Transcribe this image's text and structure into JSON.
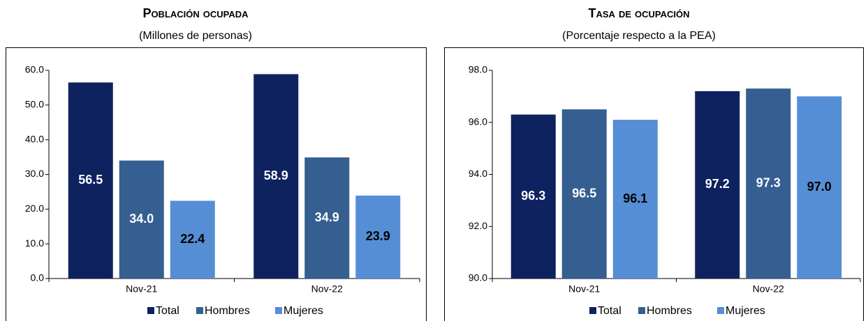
{
  "chart_data": [
    {
      "type": "bar",
      "title": "Población ocupada",
      "subtitle": "(Millones de personas)",
      "categories": [
        "Nov-21",
        "Nov-22"
      ],
      "series": [
        {
          "name": "Total",
          "color": "#0e2260",
          "values": [
            56.5,
            58.9
          ],
          "value_labels": [
            "56.5",
            "58.9"
          ],
          "label_color": "#ffffff"
        },
        {
          "name": "Hombres",
          "color": "#355f91",
          "values": [
            34.0,
            34.9
          ],
          "value_labels": [
            "34.0",
            "34.9"
          ],
          "label_color": "#ffffff"
        },
        {
          "name": "Mujeres",
          "color": "#558ed5",
          "values": [
            22.4,
            23.9
          ],
          "value_labels": [
            "22.4",
            "23.9"
          ],
          "label_color": "#000000"
        }
      ],
      "ylim": [
        0,
        60
      ],
      "yticks": [
        {
          "value": 0,
          "label": "0.0"
        },
        {
          "value": 10,
          "label": "10.0"
        },
        {
          "value": 20,
          "label": "20.0"
        },
        {
          "value": 30,
          "label": "30.0"
        },
        {
          "value": 40,
          "label": "40.0"
        },
        {
          "value": 50,
          "label": "50.0"
        },
        {
          "value": 60,
          "label": "60.0"
        }
      ],
      "grid": false,
      "legend": "bottom"
    },
    {
      "type": "bar",
      "title": "Tasa de ocupación",
      "subtitle": "(Porcentaje respecto a la PEA)",
      "categories": [
        "Nov-21",
        "Nov-22"
      ],
      "series": [
        {
          "name": "Total",
          "color": "#0e2260",
          "values": [
            96.3,
            97.2
          ],
          "value_labels": [
            "96.3",
            "97.2"
          ],
          "label_color": "#ffffff"
        },
        {
          "name": "Hombres",
          "color": "#355f91",
          "values": [
            96.5,
            97.3
          ],
          "value_labels": [
            "96.5",
            "97.3"
          ],
          "label_color": "#ffffff"
        },
        {
          "name": "Mujeres",
          "color": "#558ed5",
          "values": [
            96.1,
            97.0
          ],
          "value_labels": [
            "96.1",
            "97.0"
          ],
          "label_color": "#000000"
        }
      ],
      "ylim": [
        90,
        98
      ],
      "yticks": [
        {
          "value": 90,
          "label": "90.0"
        },
        {
          "value": 92,
          "label": "92.0"
        },
        {
          "value": 94,
          "label": "94.0"
        },
        {
          "value": 96,
          "label": "96.0"
        },
        {
          "value": 98,
          "label": "98.0"
        }
      ],
      "grid": false,
      "legend": "bottom"
    }
  ]
}
